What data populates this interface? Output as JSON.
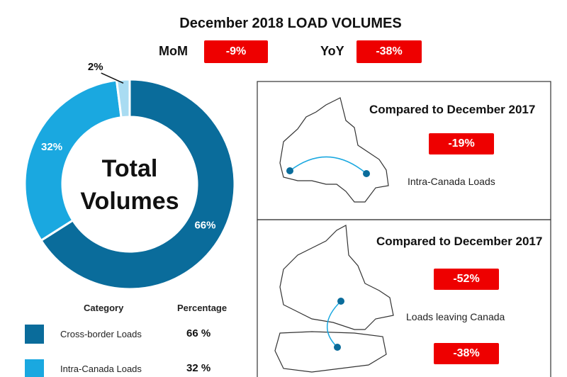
{
  "header": {
    "title": "December 2018 LOAD VOLUMES",
    "kpis": [
      {
        "label": "MoM",
        "value": "-9%"
      },
      {
        "label": "YoY",
        "value": "-38%"
      }
    ]
  },
  "chart_data": {
    "type": "donut",
    "categories": [
      "Cross-border Loads",
      "Intra-Canada Loads",
      null
    ],
    "values": [
      66,
      32,
      2
    ],
    "value_labels": [
      "66%",
      "32%",
      "2%"
    ],
    "colors": [
      "#0a6c9b",
      "#1aa8e0",
      "#a9dcf2"
    ],
    "center_text": [
      "Total",
      "Volumes"
    ],
    "legend_header": [
      "Category",
      "Percentage"
    ],
    "legend_labels": [
      "66 %",
      "32 %"
    ]
  },
  "panels": [
    {
      "heading": "Compared to December 2017",
      "changes": [
        "-19%"
      ],
      "caption": "Intra-Canada Loads"
    },
    {
      "heading": "Compared to December 2017",
      "changes": [
        "-52%",
        "-38%"
      ],
      "caption": "Loads leaving Canada"
    }
  ]
}
